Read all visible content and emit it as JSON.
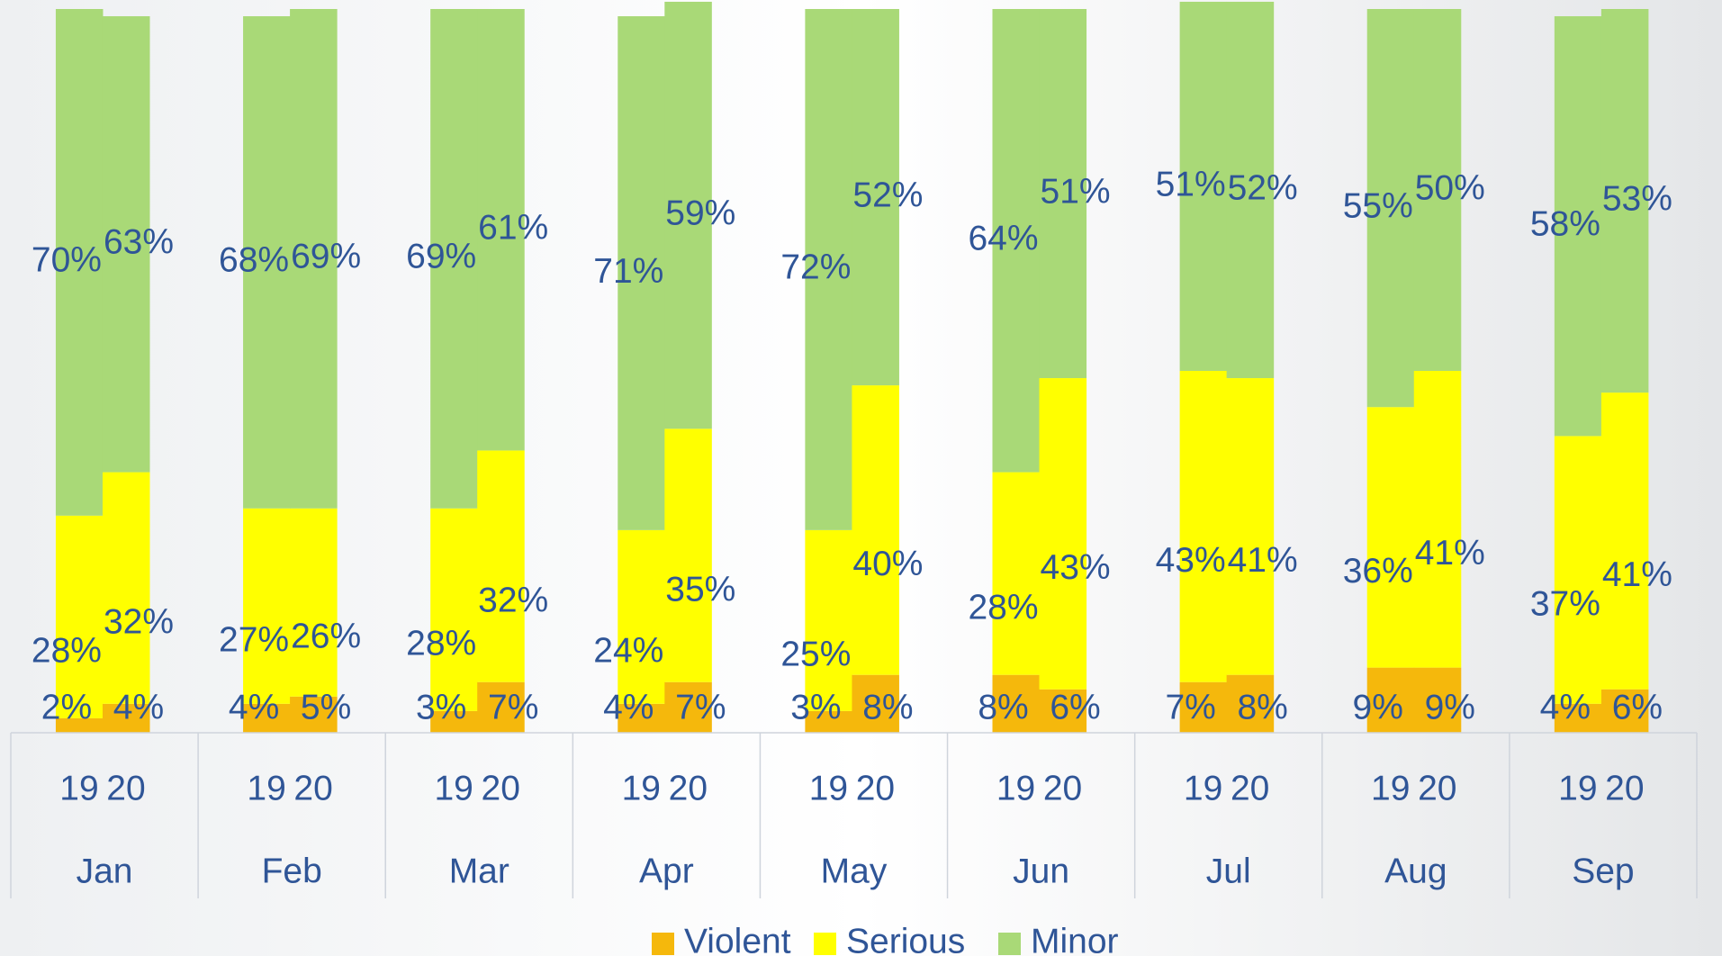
{
  "chart_data": {
    "type": "stacked_bar_100",
    "groups": [
      "Jan",
      "Feb",
      "Mar",
      "Apr",
      "May",
      "Jun",
      "Jul",
      "Aug",
      "Sep"
    ],
    "categories": [
      "19",
      "20",
      "19",
      "20",
      "19",
      "20",
      "19",
      "20",
      "19",
      "20",
      "19",
      "20",
      "19",
      "20",
      "19",
      "20",
      "19",
      "20"
    ],
    "series": [
      {
        "name": "Violent",
        "color": "#f5b80c",
        "values": [
          2,
          4,
          4,
          5,
          3,
          7,
          4,
          7,
          3,
          8,
          8,
          6,
          7,
          8,
          9,
          9,
          4,
          6
        ],
        "value_labels": [
          "2%",
          "4%",
          "4%",
          "5%",
          "3%",
          "7%",
          "4%",
          "7%",
          "3%",
          "8%",
          "8%",
          "6%",
          "7%",
          "8%",
          "9%",
          "9%",
          "4%",
          "6%"
        ]
      },
      {
        "name": "Serious",
        "color": "#ffff00",
        "values": [
          28,
          32,
          27,
          26,
          28,
          32,
          24,
          35,
          25,
          40,
          28,
          43,
          43,
          41,
          36,
          41,
          37,
          41
        ],
        "value_labels": [
          "28%",
          "32%",
          "27%",
          "26%",
          "28%",
          "32%",
          "24%",
          "35%",
          "25%",
          "40%",
          "28%",
          "43%",
          "43%",
          "41%",
          "36%",
          "41%",
          "37%",
          "41%"
        ]
      },
      {
        "name": "Minor",
        "color": "#a9d977",
        "values": [
          70,
          63,
          68,
          69,
          69,
          61,
          71,
          59,
          72,
          52,
          64,
          51,
          51,
          52,
          55,
          50,
          58,
          53
        ],
        "value_labels": [
          "70%",
          "63%",
          "68%",
          "69%",
          "69%",
          "61%",
          "71%",
          "59%",
          "72%",
          "52%",
          "64%",
          "51%",
          "51%",
          "52%",
          "55%",
          "50%",
          "58%",
          "53%"
        ]
      }
    ],
    "ylim": [
      0,
      100
    ],
    "legend": "bottom"
  }
}
